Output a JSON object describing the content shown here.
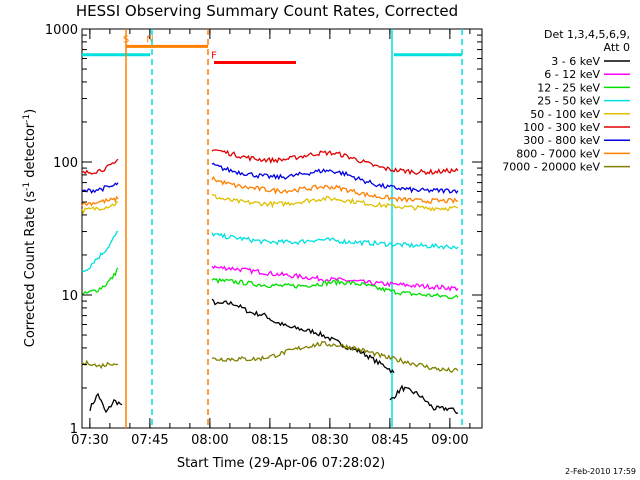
{
  "chart_data": {
    "type": "line",
    "title": "HESSI Observing Summary Count Rates, Corrected",
    "xlabel": "Start Time (29-Apr-06 07:28:02)",
    "ylabel_main": "Corrected Count Rate (s",
    "ylabel_sup1": "-1",
    "ylabel_mid": " detector",
    "ylabel_sup2": "-1",
    "ylabel_end": ")",
    "x_unit": "minutes since 07:28:02 (UT, 29-Apr-06)",
    "xlim": [
      0,
      100
    ],
    "ylim": [
      1,
      1000
    ],
    "yscale": "log",
    "xticks": [
      {
        "label": "07:30",
        "value": 1.97
      },
      {
        "label": "07:45",
        "value": 16.97
      },
      {
        "label": "08:00",
        "value": 31.97
      },
      {
        "label": "08:15",
        "value": 46.97
      },
      {
        "label": "08:30",
        "value": 61.97
      },
      {
        "label": "08:45",
        "value": 76.97
      },
      {
        "label": "09:00",
        "value": 91.97
      }
    ],
    "yticks": [
      {
        "label": "1",
        "value": 1
      },
      {
        "label": "10",
        "value": 10
      },
      {
        "label": "100",
        "value": 100
      },
      {
        "label": "1000",
        "value": 1000
      }
    ],
    "legend_header_1": "Det 1,3,4,5,6,9,",
    "legend_header_2": "Att 0",
    "legend_position": "right",
    "series": [
      {
        "name": "3 - 6 keV",
        "color": "#000000",
        "segments": [
          {
            "x": [
              2,
              4,
              6,
              8,
              10
            ],
            "y": [
              1.4,
              1.8,
              1.3,
              1.6,
              1.5
            ]
          },
          {
            "x": [
              32.5,
              34,
              36,
              38,
              40,
              42,
              44,
              46,
              48,
              50,
              52,
              54,
              56,
              58,
              60,
              62,
              64,
              66,
              68,
              70,
              72,
              74,
              76,
              78
            ],
            "y": [
              9,
              8.5,
              8.7,
              8.6,
              8,
              7.4,
              7.2,
              7,
              6.3,
              6,
              5.7,
              5.6,
              5.4,
              5.3,
              5,
              4.7,
              4.4,
              4.1,
              3.9,
              3.7,
              3.4,
              3.1,
              2.9,
              2.6
            ]
          },
          {
            "x": [
              77,
              80,
              84,
              88,
              92,
              94
            ],
            "y": [
              1.6,
              2.0,
              1.8,
              1.4,
              1.4,
              1.3
            ]
          }
        ]
      },
      {
        "name": "6 - 12 keV",
        "color": "#ff00ff",
        "segments": [
          {
            "x": [
              32.5,
              34,
              36,
              38,
              40,
              42,
              44,
              46,
              48,
              50,
              52,
              54,
              56,
              58,
              60,
              62,
              64,
              66,
              68,
              70,
              72,
              74,
              76,
              78,
              80,
              82,
              84,
              86,
              88,
              90,
              92,
              94
            ],
            "y": [
              16.5,
              16,
              16,
              15.8,
              15.5,
              15.2,
              15,
              14.7,
              14.4,
              14.2,
              14,
              13.8,
              13.6,
              13.4,
              13.2,
              13.1,
              13,
              12.9,
              12.7,
              12.5,
              12.3,
              12.2,
              12.1,
              12,
              11.9,
              11.8,
              11.7,
              11.6,
              11.5,
              11.4,
              11.3,
              11.2
            ]
          }
        ]
      },
      {
        "name": "12 - 25 keV",
        "color": "#00e000",
        "segments": [
          {
            "x": [
              0,
              2,
              4,
              6,
              8,
              9
            ],
            "y": [
              10,
              10.5,
              11,
              12,
              14,
              16
            ]
          },
          {
            "x": [
              32.5,
              34,
              36,
              38,
              40,
              42,
              44,
              46,
              48,
              50,
              52,
              54,
              56,
              58,
              60,
              62,
              64,
              66,
              68,
              70,
              72,
              74,
              76,
              78,
              80,
              82,
              84,
              86,
              88,
              90,
              92,
              94
            ],
            "y": [
              13,
              12.8,
              12.7,
              12.6,
              12.4,
              12.2,
              12,
              11.9,
              11.8,
              11.7,
              11.7,
              11.7,
              11.8,
              12,
              12.2,
              12.4,
              12.5,
              12.4,
              12.2,
              12,
              11.6,
              11.2,
              10.9,
              10.6,
              10.4,
              10.2,
              10.1,
              10,
              9.9,
              9.8,
              9.7,
              9.6
            ]
          }
        ]
      },
      {
        "name": "25 - 50 keV",
        "color": "#00e0e0",
        "segments": [
          {
            "x": [
              0,
              1,
              2,
              3,
              4,
              5,
              6,
              7,
              8,
              9
            ],
            "y": [
              15,
              15.5,
              16.5,
              18,
              19,
              20.5,
              22,
              24,
              27,
              30
            ]
          },
          {
            "x": [
              32.5,
              34,
              36,
              38,
              40,
              42,
              44,
              46,
              48,
              50,
              52,
              54,
              56,
              58,
              60,
              62,
              64,
              66,
              68,
              70,
              72,
              74,
              76,
              78,
              80,
              82,
              84,
              86,
              88,
              90,
              92,
              94
            ],
            "y": [
              29,
              28,
              27.5,
              27,
              26.5,
              26,
              25.5,
              25,
              25,
              25,
              25,
              25,
              25.5,
              26,
              26,
              25.8,
              25.5,
              25.2,
              25,
              24.8,
              24.6,
              24.4,
              24.2,
              24,
              23.8,
              23.6,
              23.5,
              23.4,
              23.3,
              23.2,
              23.1,
              23
            ]
          }
        ]
      },
      {
        "name": "50 - 100 keV",
        "color": "#e0c000",
        "segments": [
          {
            "x": [
              0,
              2,
              4,
              6,
              8,
              9
            ],
            "y": [
              43,
              44,
              45,
              46,
              48,
              50
            ]
          },
          {
            "x": [
              32.5,
              34,
              36,
              38,
              40,
              42,
              44,
              46,
              48,
              50,
              52,
              54,
              56,
              58,
              60,
              62,
              64,
              66,
              68,
              70,
              72,
              74,
              76,
              78,
              80,
              82,
              84,
              86,
              88,
              90,
              92,
              94
            ],
            "y": [
              56,
              54,
              52,
              51,
              50,
              49.5,
              49,
              48.5,
              48.3,
              48.5,
              49,
              50,
              51,
              52,
              53,
              53,
              52.5,
              51.5,
              50.5,
              49.5,
              48.5,
              47.5,
              47,
              46.5,
              46,
              45.5,
              45.3,
              45,
              45,
              45,
              45,
              45
            ]
          }
        ]
      },
      {
        "name": "100 - 300 keV",
        "color": "#e00000",
        "segments": [
          {
            "x": [
              0,
              2,
              4,
              6,
              8,
              9
            ],
            "y": [
              82,
              84,
              86,
              90,
              96,
              105
            ]
          },
          {
            "x": [
              32.5,
              34,
              36,
              38,
              40,
              42,
              44,
              46,
              48,
              50,
              52,
              54,
              56,
              58,
              60,
              62,
              64,
              66,
              68,
              70,
              72,
              74,
              76,
              78,
              80,
              82,
              84,
              86,
              88,
              90,
              92,
              94
            ],
            "y": [
              125,
              122,
              118,
              114,
              110,
              107,
              105,
              104,
              103,
              104,
              106,
              109,
              112,
              115,
              117,
              117,
              115,
              111,
              106,
              101,
              96,
              92,
              89,
              87,
              86,
              85,
              84,
              84,
              84,
              85,
              86,
              86
            ]
          }
        ]
      },
      {
        "name": "300 - 800 keV",
        "color": "#0000e0",
        "segments": [
          {
            "x": [
              0,
              2,
              4,
              6,
              8,
              9
            ],
            "y": [
              60,
              61,
              62,
              64,
              66,
              70
            ]
          },
          {
            "x": [
              32.5,
              34,
              36,
              38,
              40,
              42,
              44,
              46,
              48,
              50,
              52,
              54,
              56,
              58,
              60,
              62,
              64,
              66,
              68,
              70,
              72,
              74,
              76,
              78,
              80,
              82,
              84,
              86,
              88,
              90,
              92,
              94
            ],
            "y": [
              95,
              92,
              88,
              85,
              83,
              81,
              79,
              78,
              77,
              77,
              78,
              80,
              82,
              84,
              86,
              86,
              84,
              81,
              77,
              73,
              70,
              67,
              65,
              64,
              63,
              62,
              61,
              61,
              61,
              61,
              61,
              61
            ]
          }
        ]
      },
      {
        "name": "800 - 7000 keV",
        "color": "#ff8000",
        "segments": [
          {
            "x": [
              0,
              2,
              4,
              6,
              8,
              9
            ],
            "y": [
              48,
              49,
              50,
              51,
              52,
              53
            ]
          },
          {
            "x": [
              32.5,
              34,
              36,
              38,
              40,
              42,
              44,
              46,
              48,
              50,
              52,
              54,
              56,
              58,
              60,
              62,
              64,
              66,
              68,
              70,
              72,
              74,
              76,
              78,
              80,
              82,
              84,
              86,
              88,
              90,
              92,
              94
            ],
            "y": [
              76,
              72,
              69,
              67,
              65,
              64,
              63,
              62,
              61,
              61,
              61,
              62,
              63,
              64,
              65,
              65,
              64,
              62,
              60,
              58,
              56,
              55,
              54,
              53,
              52,
              52,
              51,
              51,
              51,
              51,
              51,
              51
            ]
          }
        ]
      },
      {
        "name": "7000 - 20000 keV",
        "color": "#808000",
        "segments": [
          {
            "x": [
              0,
              2,
              4,
              6,
              8,
              9
            ],
            "y": [
              3.0,
              3.1,
              2.9,
              3.0,
              3.1,
              3.0
            ]
          },
          {
            "x": [
              32.5,
              36,
              40,
              44,
              48,
              52,
              56,
              60,
              64,
              68,
              72,
              76,
              80,
              84,
              88,
              92,
              94
            ],
            "y": [
              3.3,
              3.3,
              3.3,
              3.3,
              3.5,
              3.8,
              4.1,
              4.3,
              4.2,
              4.0,
              3.7,
              3.4,
              3.2,
              3.0,
              2.8,
              2.7,
              2.7
            ]
          }
        ]
      }
    ],
    "flag_bars": [
      {
        "label": "S",
        "color": "#ff8000",
        "x": [
          11,
          31.5
        ],
        "y": 740
      },
      {
        "label": "N",
        "color": "#ff8000",
        "x": [
          17,
          17
        ],
        "y": 740
      },
      {
        "label": "F",
        "color": "#ff0000",
        "x": [
          33,
          53.5
        ],
        "y": 560
      },
      {
        "label": "",
        "color": "#00e0e0",
        "x": [
          0,
          17
        ],
        "y": 640
      },
      {
        "label": "",
        "color": "#00e0e0",
        "x": [
          78,
          95
        ],
        "y": 640
      }
    ],
    "vertical_markers": [
      {
        "x": 11,
        "color": "#ff8000",
        "style": "solid"
      },
      {
        "x": 17.5,
        "color": "#00e0e0",
        "style": "dashed"
      },
      {
        "x": 31.5,
        "color": "#ff8000",
        "style": "dashed"
      },
      {
        "x": 77.5,
        "color": "#00e0e0",
        "style": "solid"
      },
      {
        "x": 95,
        "color": "#00e0e0",
        "style": "dashed"
      }
    ],
    "grid": false
  },
  "footer": {
    "timestamp": "2-Feb-2010 17:59"
  }
}
